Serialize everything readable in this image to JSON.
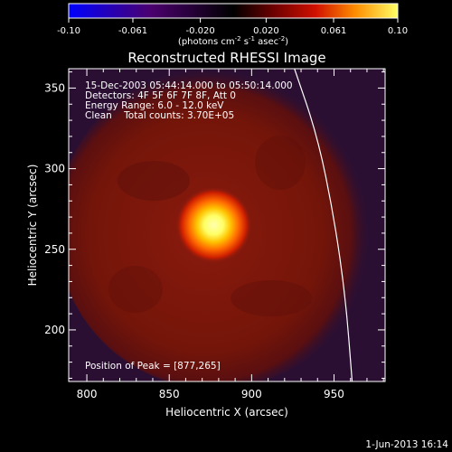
{
  "chart_data": {
    "type": "heatmap",
    "title": "Reconstructed RHESSI Image",
    "xlabel": "Heliocentric X (arcsec)",
    "ylabel": "Heliocentric Y (arcsec)",
    "xlim": [
      789,
      981
    ],
    "ylim": [
      168,
      362
    ],
    "x_ticks": [
      "800",
      "850",
      "900",
      "950"
    ],
    "x_tick_values": [
      800,
      850,
      900,
      950
    ],
    "y_ticks": [
      "200",
      "250",
      "300",
      "350"
    ],
    "y_tick_values": [
      200,
      250,
      300,
      350
    ],
    "colorbar": {
      "min": -0.1,
      "max": 0.1,
      "ticks": [
        "-0.10",
        "-0.061",
        "-0.020",
        "0.020",
        "0.061",
        "0.10"
      ],
      "tick_values": [
        -0.1,
        -0.061,
        -0.02,
        0.02,
        0.061,
        0.1
      ],
      "unit_label": "(photons cm",
      "unit_sup1": "-2",
      "unit_mid": " s",
      "unit_sup2": "-1",
      "unit_end": " asec",
      "unit_sup3": "-2",
      "unit_close": ")",
      "colormap": "red-temperature"
    },
    "annotations": [
      "15-Dec-2003 05:44:14.000 to 05:50:14.000",
      "Detectors: 4F 5F 6F 7F 8F, Att 0",
      "Energy Range: 6.0 - 12.0 keV",
      "Clean    Total counts: 3.70E+05"
    ],
    "peak_label": "Position of Peak = [877,265]",
    "peak": {
      "x": 877,
      "y": 265
    },
    "limb_curve": [
      [
        926,
        362
      ],
      [
        940,
        320
      ],
      [
        950,
        270
      ],
      [
        957,
        220
      ],
      [
        961,
        168
      ]
    ],
    "timestamp": "1-Jun-2013 16:14"
  },
  "colors": {
    "background": "#000000",
    "plot_outer": "#2a0f33",
    "source_core": "#ffff9a",
    "diffuse_red": "#7a140c",
    "limb_line": "#ffffff"
  }
}
